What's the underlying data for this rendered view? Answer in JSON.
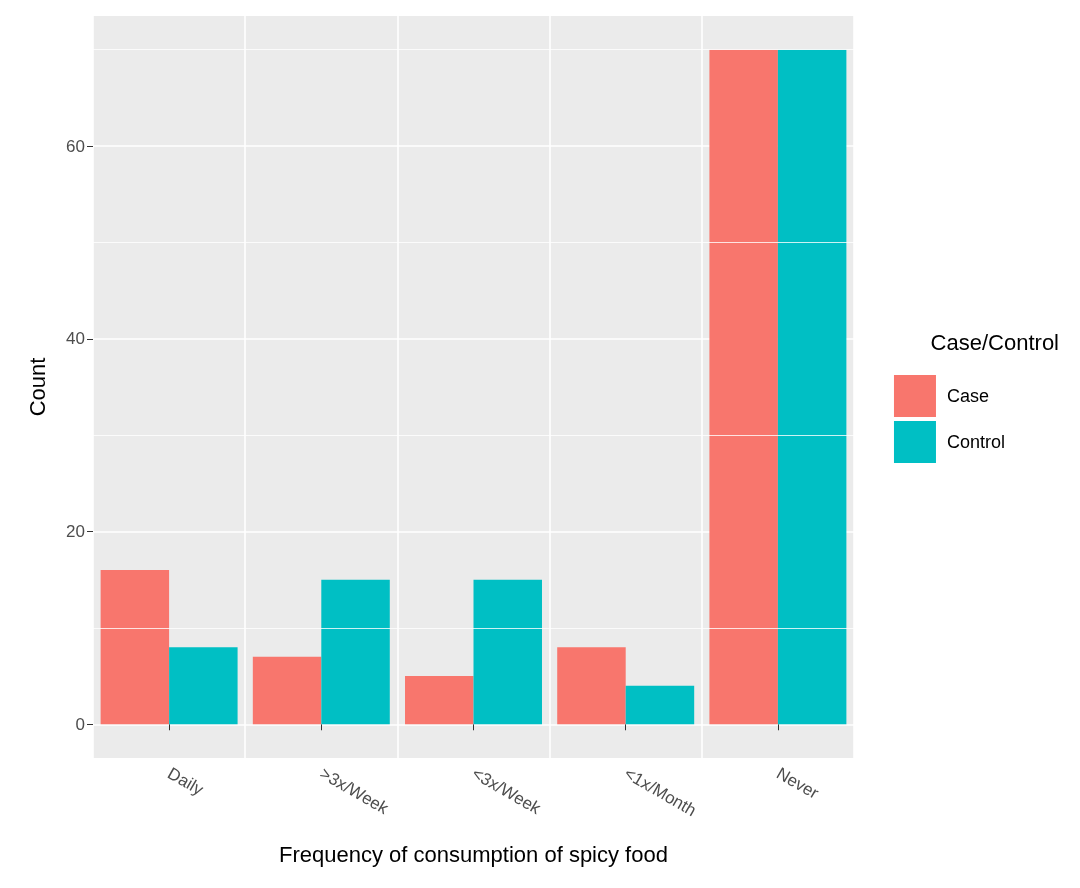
{
  "chart_data": {
    "type": "bar",
    "xlabel": "Frequency of consumption of spicy food",
    "ylabel": "Count",
    "legend_title": "Case/Control",
    "categories": [
      "Daily",
      ">3x/Week",
      "<3x/Week",
      "<1x/Month",
      "Never"
    ],
    "series": [
      {
        "name": "Case",
        "color": "#f8766d",
        "values": [
          16,
          7,
          5,
          8,
          70
        ]
      },
      {
        "name": "Control",
        "color": "#00bfc4",
        "values": [
          8,
          15,
          15,
          4,
          70
        ]
      }
    ],
    "ylim": [
      -3.5,
      73.5
    ],
    "yticks": [
      0,
      {
        "value": 10,
        "label": null
      },
      20,
      {
        "value": 30,
        "label": null
      },
      40,
      {
        "value": 50,
        "label": null
      },
      60,
      {
        "value": 70,
        "label": null
      }
    ],
    "grid": true,
    "legend": "right"
  }
}
